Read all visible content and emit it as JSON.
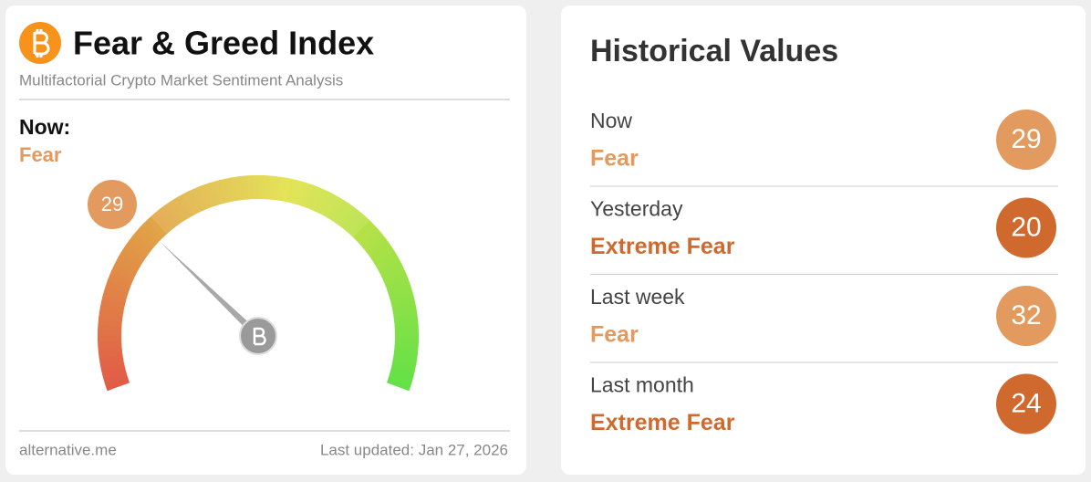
{
  "header": {
    "title": "Fear & Greed Index",
    "subtitle": "Multifactorial Crypto Market Sentiment Analysis"
  },
  "now": {
    "label": "Now:",
    "classification": "Fear",
    "value": 29,
    "color": "#e39a5e"
  },
  "footer": {
    "source": "alternative.me",
    "updated": "Last updated: Jan 27, 2026"
  },
  "history": {
    "title": "Historical Values",
    "rows": [
      {
        "label": "Now",
        "classification": "Fear",
        "value": 29,
        "color": "#e39a5e"
      },
      {
        "label": "Yesterday",
        "classification": "Extreme Fear",
        "value": 20,
        "color": "#d0692e"
      },
      {
        "label": "Last week",
        "classification": "Fear",
        "value": 32,
        "color": "#e39a5e"
      },
      {
        "label": "Last month",
        "classification": "Extreme Fear",
        "value": 24,
        "color": "#d0692e"
      }
    ]
  }
}
